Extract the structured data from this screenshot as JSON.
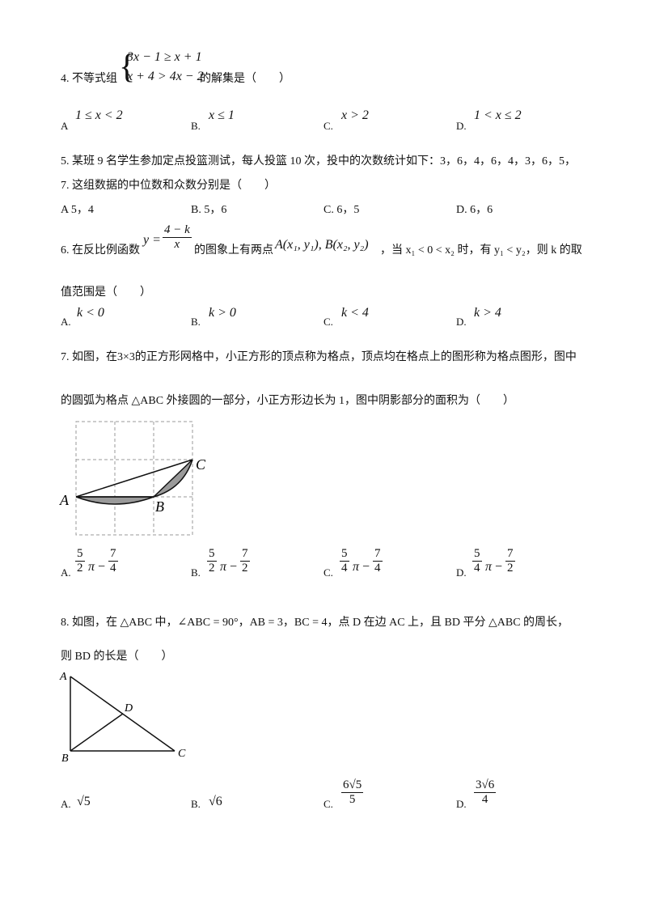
{
  "q4": {
    "num": "4. 不等式组",
    "ineq1": "3x − 1 ≥ x + 1",
    "ineq2": "x + 4 > 4x − 2",
    "tail": "的解集是（　　）",
    "options": [
      {
        "label": "A",
        "expr": "1 ≤ x < 2"
      },
      {
        "label": "B.",
        "expr": "x ≤ 1"
      },
      {
        "label": "C.",
        "expr": "x > 2"
      },
      {
        "label": "D.",
        "expr": "1 < x ≤ 2"
      }
    ]
  },
  "q5": {
    "line1": "5. 某班 9 名学生参加定点投篮测试，每人投篮 10 次，投中的次数统计如下：3，6，4，6，4，3，6，5，",
    "line2": "7. 这组数据的中位数和众数分别是（　　）",
    "options": [
      {
        "text": "A  5，4"
      },
      {
        "text": "B. 5，6"
      },
      {
        "text": "C. 6，5"
      },
      {
        "text": "D. 6，6"
      }
    ]
  },
  "q6": {
    "num": "6. 在反比例函数",
    "func_lhs": "y =",
    "func_num": "4 − k",
    "func_den": "x",
    "mid": "的图象上有两点",
    "points": "A(x₁, y₁), B(x₂, y₂)",
    "cond": "，当 x₁ < 0 < x₂ 时，有 y₁ < y₂，则 k 的取",
    "line2": "值范围是（　　）",
    "options": [
      {
        "label": "A.",
        "expr": "k < 0"
      },
      {
        "label": "B.",
        "expr": "k > 0"
      },
      {
        "label": "C.",
        "expr": "k < 4"
      },
      {
        "label": "D.",
        "expr": "k > 4"
      }
    ]
  },
  "q7": {
    "line1": "7. 如图，在3×3的正方形网格中，小正方形的顶点称为格点，顶点均在格点上的图形称为格点图形，图中",
    "line2": "的圆弧为格点 △ABC 外接圆的一部分，小正方形边长为 1，图中阴影部分的面积为（　　）",
    "labels": {
      "A": "A",
      "B": "B",
      "C": "C"
    },
    "options": [
      {
        "label": "A.",
        "n1": "5",
        "d1": "2",
        "n2": "7",
        "d2": "4"
      },
      {
        "label": "B.",
        "n1": "5",
        "d1": "2",
        "n2": "7",
        "d2": "2"
      },
      {
        "label": "C.",
        "n1": "5",
        "d1": "4",
        "n2": "7",
        "d2": "4"
      },
      {
        "label": "D.",
        "n1": "5",
        "d1": "4",
        "n2": "7",
        "d2": "2"
      }
    ]
  },
  "q8": {
    "line1": "8. 如图，在 △ABC 中，∠ABC = 90°，AB = 3，BC = 4，点 D 在边 AC 上，且 BD 平分 △ABC 的周长，",
    "line2": "则 BD 的长是（　　）",
    "labels": {
      "A": "A",
      "B": "B",
      "C": "C",
      "D": "D"
    },
    "options": [
      {
        "label": "A.",
        "expr": "√5"
      },
      {
        "label": "B.",
        "expr": "√6"
      },
      {
        "label": "C.",
        "num": "6√5",
        "den": "5"
      },
      {
        "label": "D.",
        "num": "3√6",
        "den": "4"
      }
    ]
  },
  "pi": "π",
  "minus": "−"
}
